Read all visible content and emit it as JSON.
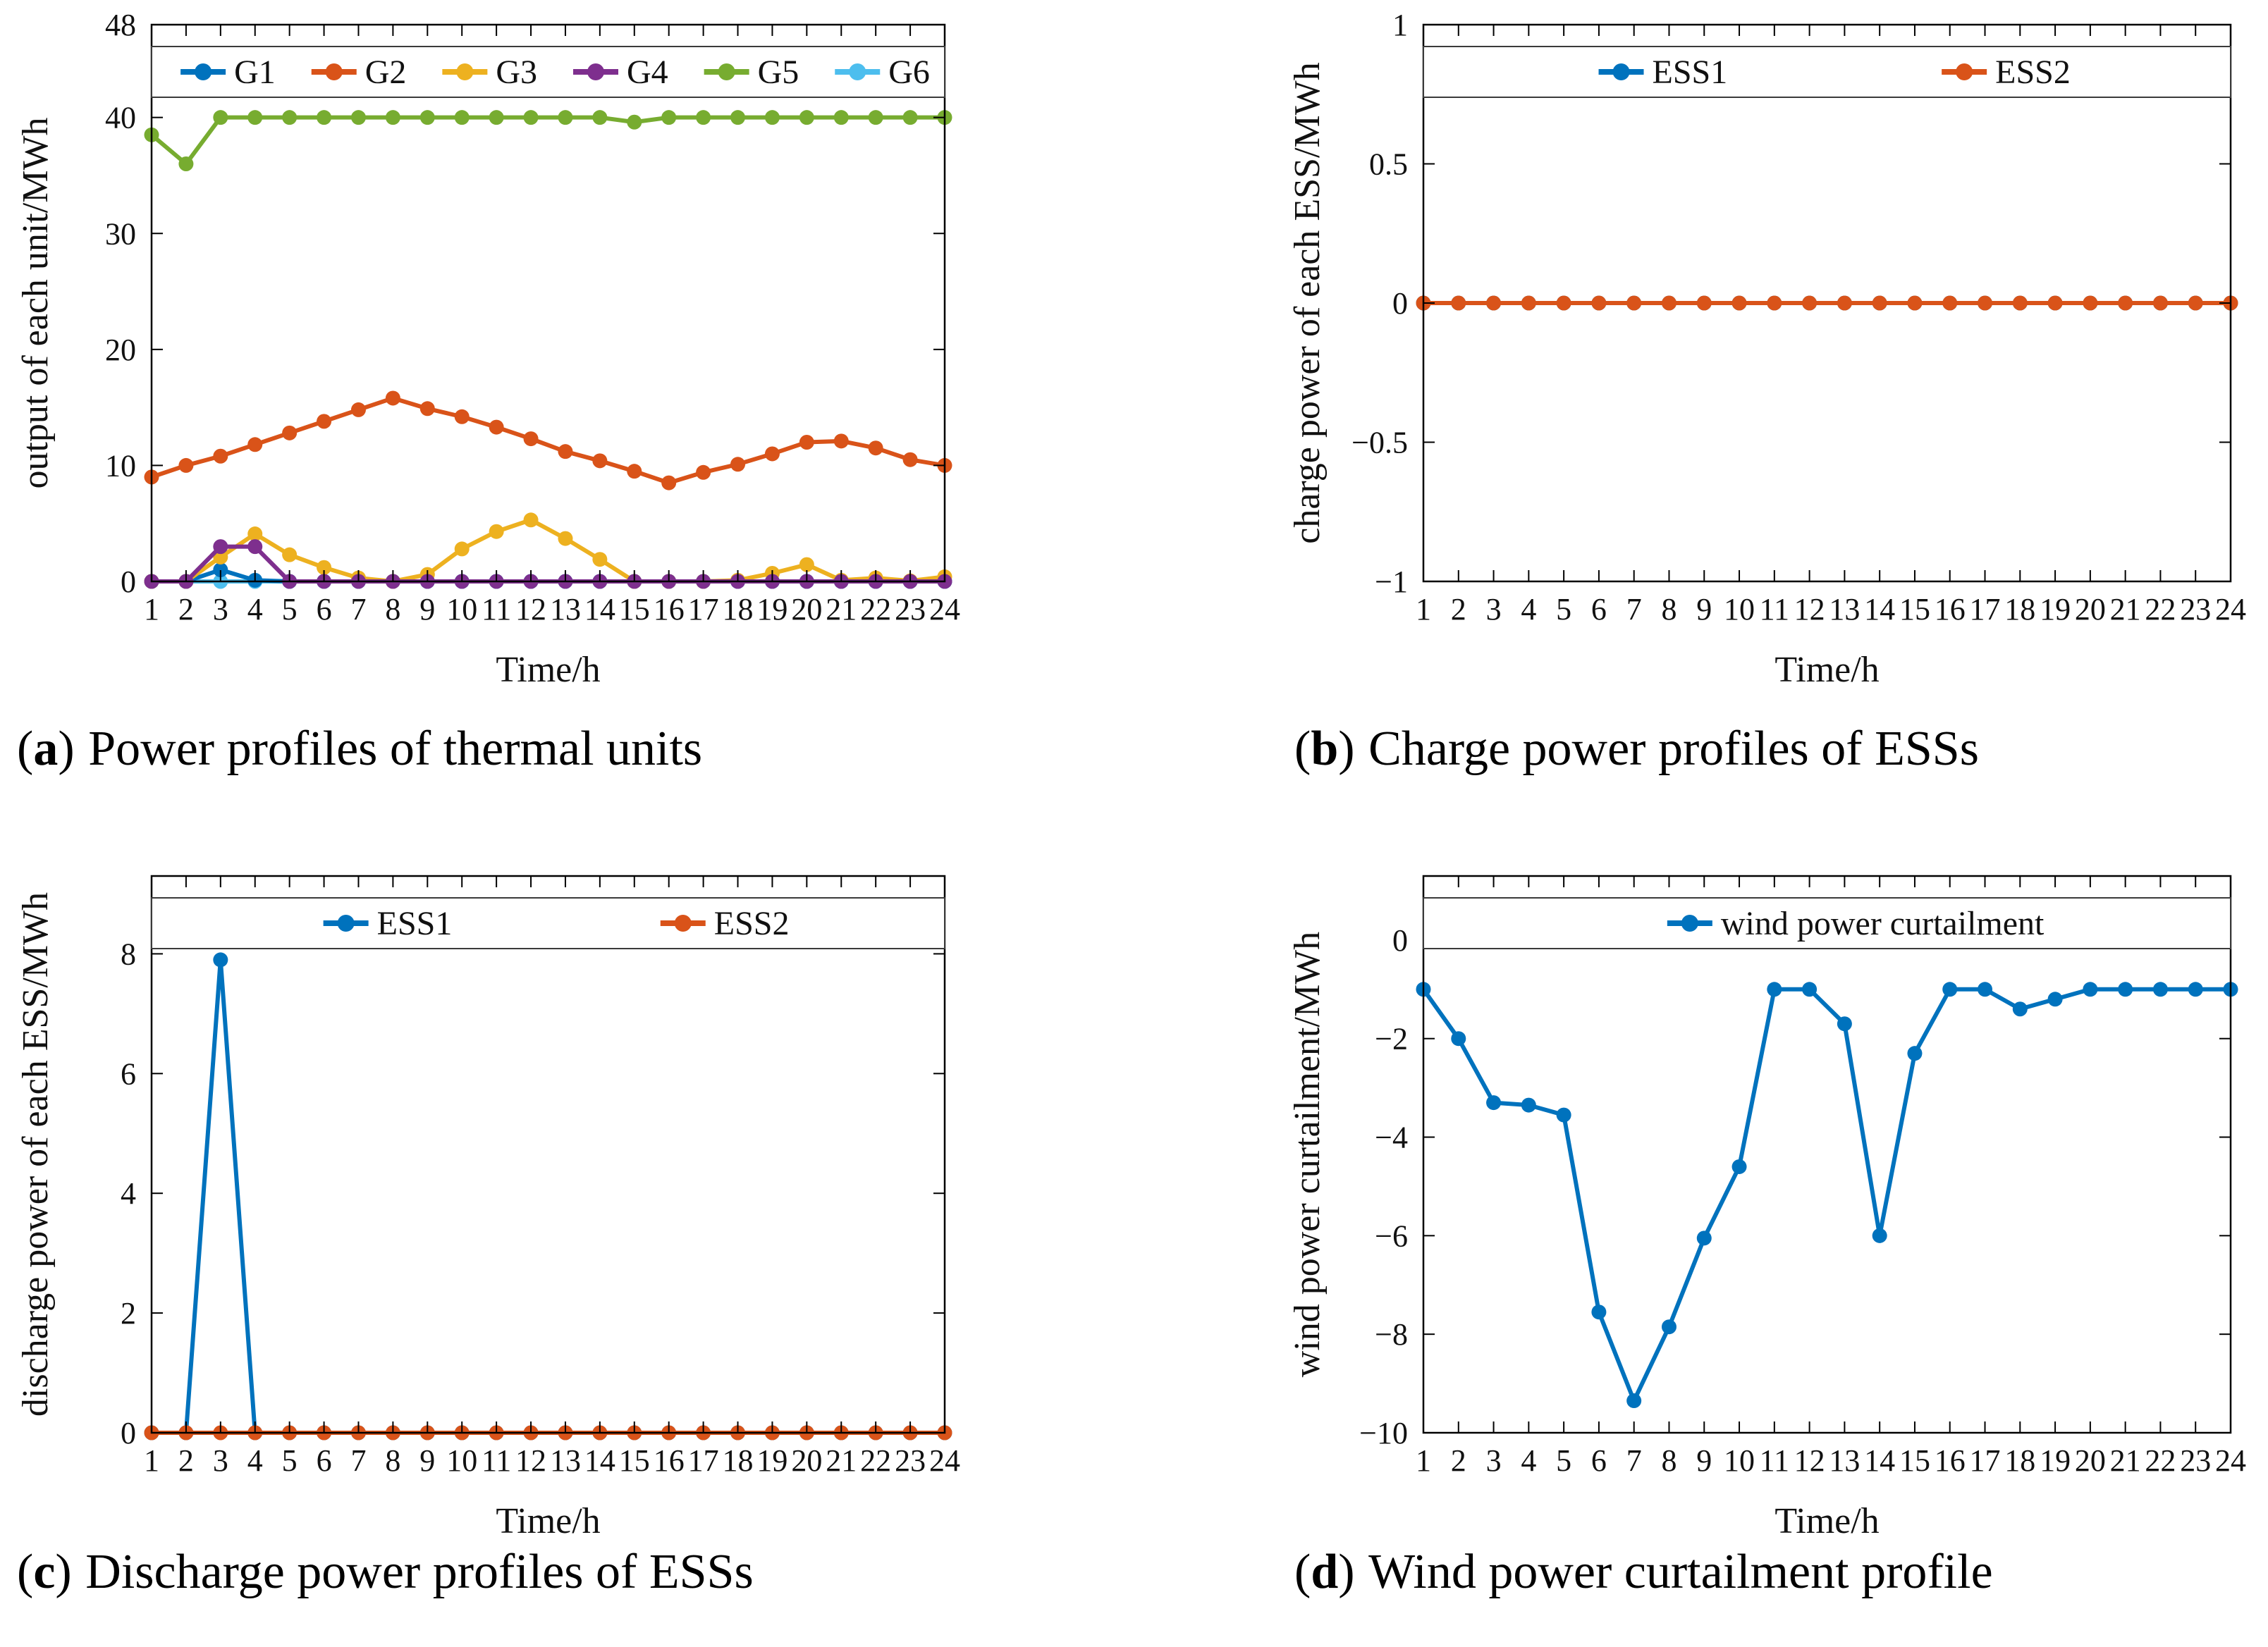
{
  "page": {
    "background": "#ffffff"
  },
  "chart_data": [
    {
      "id": "a",
      "type": "line",
      "caption": {
        "open": "(",
        "letter": "a",
        "close": ")",
        "text": "Power profiles of thermal units"
      },
      "xlabel": "Time/h",
      "ylabel": "output of each unit/MWh",
      "x": [
        1,
        2,
        3,
        4,
        5,
        6,
        7,
        8,
        9,
        10,
        11,
        12,
        13,
        14,
        15,
        16,
        17,
        18,
        19,
        20,
        21,
        22,
        23,
        24
      ],
      "xlim": [
        1,
        24
      ],
      "ylim": [
        0,
        48
      ],
      "yticks": [
        {
          "v": 0,
          "t": "0"
        },
        {
          "v": 10,
          "t": "10"
        },
        {
          "v": 20,
          "t": "20"
        },
        {
          "v": 30,
          "t": "30"
        },
        {
          "v": 40,
          "t": "40"
        },
        {
          "v": 48,
          "t": "48"
        }
      ],
      "grid": false,
      "legend_position": "inside-top-full-width",
      "series": [
        {
          "name": "G1",
          "color": "#0072BD",
          "values": [
            0,
            0,
            1,
            0.1,
            0,
            0,
            0,
            0,
            0,
            0,
            0,
            0,
            0,
            0,
            0,
            0,
            0,
            0,
            0,
            0,
            0,
            0,
            0,
            0
          ]
        },
        {
          "name": "G2",
          "color": "#D95319",
          "values": [
            9,
            10,
            10.8,
            11.8,
            12.8,
            13.8,
            14.8,
            15.8,
            14.9,
            14.2,
            13.3,
            12.3,
            11.2,
            10.4,
            9.5,
            8.5,
            9.4,
            10.1,
            11,
            12,
            12.1,
            11.5,
            10.5,
            10
          ]
        },
        {
          "name": "G3",
          "color": "#EDB120",
          "values": [
            0,
            0,
            2.1,
            4.1,
            2.3,
            1.2,
            0.3,
            0,
            0.6,
            2.8,
            4.3,
            5.3,
            3.7,
            1.9,
            0,
            0,
            0,
            0.1,
            0.7,
            1.45,
            0.1,
            0.3,
            0.05,
            0.4
          ]
        },
        {
          "name": "G4",
          "color": "#7E2F8E",
          "values": [
            0,
            0,
            3,
            3,
            0,
            0,
            0,
            0,
            0,
            0,
            0,
            0,
            0,
            0,
            0,
            0,
            0,
            0,
            0,
            0,
            0,
            0,
            0,
            0
          ]
        },
        {
          "name": "G5",
          "color": "#77AC30",
          "values": [
            38.5,
            36,
            40,
            40,
            40,
            40,
            40,
            40,
            40,
            40,
            40,
            40,
            40,
            40,
            39.6,
            40,
            40,
            40,
            40,
            40,
            40,
            40,
            40,
            40
          ]
        },
        {
          "name": "G6",
          "color": "#4DBEEE",
          "values": [
            0,
            0,
            0,
            0,
            0,
            0,
            0,
            0,
            0,
            0,
            0,
            0,
            0,
            0,
            0,
            0,
            0,
            0,
            0,
            0,
            0,
            0,
            0,
            0
          ]
        }
      ],
      "draw_order": [
        "G6",
        "G1",
        "G3",
        "G2",
        "G5",
        "G4"
      ]
    },
    {
      "id": "b",
      "type": "line",
      "caption": {
        "open": "(",
        "letter": "b",
        "close": ")",
        "text": "Charge power profiles of ESSs"
      },
      "xlabel": "Time/h",
      "ylabel": "charge power of each ESS/MWh",
      "x": [
        1,
        2,
        3,
        4,
        5,
        6,
        7,
        8,
        9,
        10,
        11,
        12,
        13,
        14,
        15,
        16,
        17,
        18,
        19,
        20,
        21,
        22,
        23,
        24
      ],
      "xlim": [
        1,
        24
      ],
      "ylim": [
        -1,
        1
      ],
      "yticks": [
        {
          "v": -1,
          "t": "−1"
        },
        {
          "v": -0.5,
          "t": "−0.5"
        },
        {
          "v": 0,
          "t": "0"
        },
        {
          "v": 0.5,
          "t": "0.5"
        },
        {
          "v": 1,
          "t": "1"
        }
      ],
      "grid": false,
      "legend_position": "inside-top-full-width",
      "series": [
        {
          "name": "ESS1",
          "color": "#0072BD",
          "values": [
            0,
            0,
            0,
            0,
            0,
            0,
            0,
            0,
            0,
            0,
            0,
            0,
            0,
            0,
            0,
            0,
            0,
            0,
            0,
            0,
            0,
            0,
            0,
            0
          ]
        },
        {
          "name": "ESS2",
          "color": "#D95319",
          "values": [
            0,
            0,
            0,
            0,
            0,
            0,
            0,
            0,
            0,
            0,
            0,
            0,
            0,
            0,
            0,
            0,
            0,
            0,
            0,
            0,
            0,
            0,
            0,
            0
          ]
        }
      ],
      "draw_order": [
        "ESS1",
        "ESS2"
      ]
    },
    {
      "id": "c",
      "type": "line",
      "caption": {
        "open": "(",
        "letter": "c",
        "close": ")",
        "text": "Discharge power profiles of ESSs"
      },
      "xlabel": "Time/h",
      "ylabel": "discharge power of each ESS/MWh",
      "x": [
        1,
        2,
        3,
        4,
        5,
        6,
        7,
        8,
        9,
        10,
        11,
        12,
        13,
        14,
        15,
        16,
        17,
        18,
        19,
        20,
        21,
        22,
        23,
        24
      ],
      "xlim": [
        1,
        24
      ],
      "ylim": [
        0,
        9.3
      ],
      "yticks": [
        {
          "v": 0,
          "t": "0"
        },
        {
          "v": 2,
          "t": "2"
        },
        {
          "v": 4,
          "t": "4"
        },
        {
          "v": 6,
          "t": "6"
        },
        {
          "v": 8,
          "t": "8"
        }
      ],
      "grid": false,
      "legend_position": "inside-top-full-width",
      "series": [
        {
          "name": "ESS1",
          "color": "#0072BD",
          "values": [
            0,
            0,
            7.9,
            0,
            0,
            0,
            0,
            0,
            0,
            0,
            0,
            0,
            0,
            0,
            0,
            0,
            0,
            0,
            0,
            0,
            0,
            0,
            0,
            0
          ]
        },
        {
          "name": "ESS2",
          "color": "#D95319",
          "values": [
            0,
            0,
            0,
            0,
            0,
            0,
            0,
            0,
            0,
            0,
            0,
            0,
            0,
            0,
            0,
            0,
            0,
            0,
            0,
            0,
            0,
            0,
            0,
            0
          ]
        }
      ],
      "draw_order": [
        "ESS1",
        "ESS2"
      ]
    },
    {
      "id": "d",
      "type": "line",
      "caption": {
        "open": "(",
        "letter": "d",
        "close": ")",
        "text": "Wind power curtailment profile"
      },
      "xlabel": "Time/h",
      "ylabel": "wind power curtailment/MWh",
      "x": [
        1,
        2,
        3,
        4,
        5,
        6,
        7,
        8,
        9,
        10,
        11,
        12,
        13,
        14,
        15,
        16,
        17,
        18,
        19,
        20,
        21,
        22,
        23,
        24
      ],
      "xlim": [
        1,
        24
      ],
      "ylim": [
        -10,
        1.3
      ],
      "yticks": [
        {
          "v": -10,
          "t": "−10"
        },
        {
          "v": -8,
          "t": "−8"
        },
        {
          "v": -6,
          "t": "−6"
        },
        {
          "v": -4,
          "t": "−4"
        },
        {
          "v": -2,
          "t": "−2"
        },
        {
          "v": 0,
          "t": "0"
        }
      ],
      "grid": false,
      "legend_position": "inside-top-full-width",
      "series": [
        {
          "name": "wind power curtailment",
          "color": "#0072BD",
          "values": [
            -1,
            -2,
            -3.3,
            -3.35,
            -3.55,
            -7.55,
            -9.35,
            -7.85,
            -6.05,
            -4.6,
            -1,
            -1,
            -1.7,
            -6,
            -2.3,
            -1,
            -1,
            -1.4,
            -1.2,
            -1,
            -1,
            -1,
            -1,
            -1
          ]
        }
      ],
      "draw_order": [
        "wind power curtailment"
      ]
    }
  ]
}
